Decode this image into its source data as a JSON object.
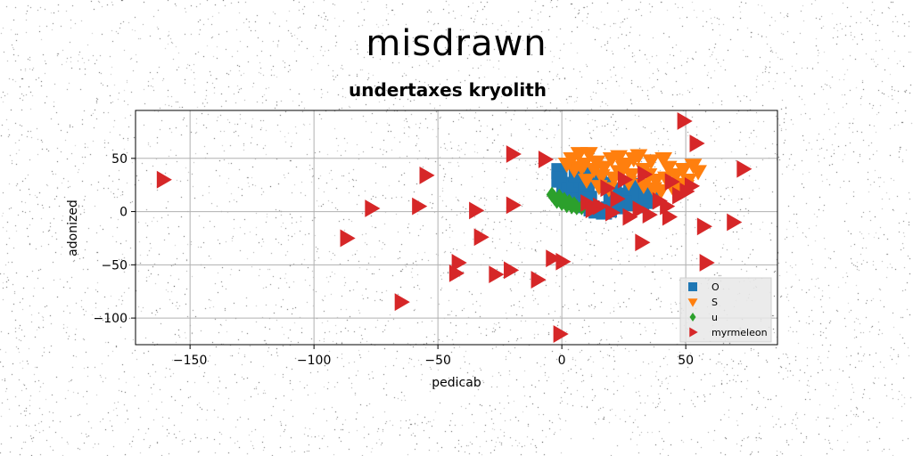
{
  "title": "misdrawn",
  "subtitle": "undertaxes kryolith",
  "colors": {
    "O": "#1f77b4",
    "S": "#ff7f0e",
    "u": "#2ca02c",
    "myrmeleon": "#d62728"
  },
  "chart_data": {
    "type": "scatter",
    "title": "undertaxes kryolith",
    "xlabel": "pedicab",
    "ylabel": "adonized",
    "xlim": [
      -172,
      87
    ],
    "ylim": [
      -125,
      95
    ],
    "xticks": [
      -150,
      -100,
      -50,
      0,
      50
    ],
    "yticks": [
      50,
      0,
      -50,
      -100
    ],
    "xtick_labels": [
      "−150",
      "−100",
      "−50",
      "0",
      "50"
    ],
    "ytick_labels": [
      "50",
      "0",
      "−50",
      "−100"
    ],
    "grid": true,
    "legend_position": "lower-right",
    "series": [
      {
        "name": "O",
        "marker": "square",
        "color": "#1f77b4",
        "points": [
          [
            -1,
            38
          ],
          [
            -1,
            30
          ],
          [
            1,
            25
          ],
          [
            3,
            20
          ],
          [
            5,
            15
          ],
          [
            7,
            10
          ],
          [
            9,
            6
          ],
          [
            12,
            3
          ],
          [
            14,
            1
          ],
          [
            17,
            0
          ],
          [
            19,
            2
          ],
          [
            5,
            25
          ],
          [
            8,
            30
          ],
          [
            12,
            35
          ],
          [
            15,
            30
          ],
          [
            18,
            25
          ],
          [
            21,
            20
          ],
          [
            24,
            15
          ],
          [
            27,
            12
          ],
          [
            30,
            8
          ],
          [
            32,
            6
          ],
          [
            34,
            10
          ],
          [
            36,
            15
          ],
          [
            33,
            20
          ],
          [
            30,
            24
          ],
          [
            28,
            18
          ],
          [
            25,
            8
          ],
          [
            22,
            5
          ],
          [
            20,
            12
          ],
          [
            10,
            20
          ],
          [
            6,
            35
          ],
          [
            11,
            12
          ]
        ]
      },
      {
        "name": "S",
        "marker": "triangle-down",
        "color": "#ff7f0e",
        "points": [
          [
            4,
            50
          ],
          [
            7,
            55
          ],
          [
            9,
            45
          ],
          [
            11,
            55
          ],
          [
            14,
            47
          ],
          [
            17,
            42
          ],
          [
            20,
            50
          ],
          [
            23,
            38
          ],
          [
            26,
            45
          ],
          [
            28,
            35
          ],
          [
            31,
            53
          ],
          [
            33,
            40
          ],
          [
            36,
            48
          ],
          [
            38,
            30
          ],
          [
            41,
            50
          ],
          [
            43,
            42
          ],
          [
            46,
            35
          ],
          [
            49,
            40
          ],
          [
            51,
            30
          ],
          [
            53,
            44
          ],
          [
            55,
            38
          ],
          [
            45,
            22
          ],
          [
            40,
            20
          ],
          [
            33,
            25
          ],
          [
            27,
            28
          ],
          [
            21,
            32
          ],
          [
            16,
            34
          ],
          [
            13,
            40
          ],
          [
            8,
            42
          ],
          [
            5,
            40
          ],
          [
            2,
            45
          ],
          [
            23,
            52
          ],
          [
            29,
            50
          ],
          [
            37,
            22
          ],
          [
            47,
            26
          ],
          [
            19,
            22
          ],
          [
            15,
            24
          ],
          [
            10,
            30
          ],
          [
            25,
            42
          ],
          [
            35,
            35
          ],
          [
            42,
            32
          ],
          [
            50,
            24
          ]
        ]
      },
      {
        "name": "u",
        "marker": "diamond",
        "color": "#2ca02c",
        "points": [
          [
            -4,
            16
          ],
          [
            -3,
            13
          ],
          [
            -2,
            10
          ],
          [
            0,
            8
          ],
          [
            2,
            6
          ],
          [
            4,
            5
          ],
          [
            6,
            4
          ],
          [
            8,
            4
          ],
          [
            -1,
            14
          ],
          [
            3,
            9
          ],
          [
            5,
            7
          ],
          [
            1,
            11
          ]
        ]
      },
      {
        "name": "myrmeleon",
        "marker": "triangle-right",
        "color": "#d62728",
        "points": [
          [
            -161,
            30
          ],
          [
            -77,
            3
          ],
          [
            -87,
            -25
          ],
          [
            -58,
            5
          ],
          [
            -55,
            34
          ],
          [
            -35,
            1
          ],
          [
            -33,
            -24
          ],
          [
            -65,
            -85
          ],
          [
            -42,
            -48
          ],
          [
            -43,
            -58
          ],
          [
            -27,
            -59
          ],
          [
            -21,
            -55
          ],
          [
            -10,
            -64
          ],
          [
            -20,
            54
          ],
          [
            -7,
            49
          ],
          [
            -20,
            6
          ],
          [
            -4,
            -44
          ],
          [
            0,
            -47
          ],
          [
            -1,
            -115
          ],
          [
            10,
            8
          ],
          [
            15,
            5
          ],
          [
            22,
            12
          ],
          [
            27,
            -5
          ],
          [
            32,
            -29
          ],
          [
            35,
            -3
          ],
          [
            43,
            -5
          ],
          [
            47,
            15
          ],
          [
            50,
            19
          ],
          [
            49,
            85
          ],
          [
            54,
            64
          ],
          [
            57,
            -14
          ],
          [
            58,
            -48
          ],
          [
            69,
            -10
          ],
          [
            73,
            40
          ],
          [
            18,
            22
          ],
          [
            25,
            30
          ],
          [
            33,
            35
          ],
          [
            39,
            10
          ],
          [
            42,
            5
          ],
          [
            31,
            2
          ],
          [
            20,
            -1
          ],
          [
            12,
            2
          ],
          [
            52,
            24
          ],
          [
            44,
            28
          ]
        ]
      }
    ]
  }
}
